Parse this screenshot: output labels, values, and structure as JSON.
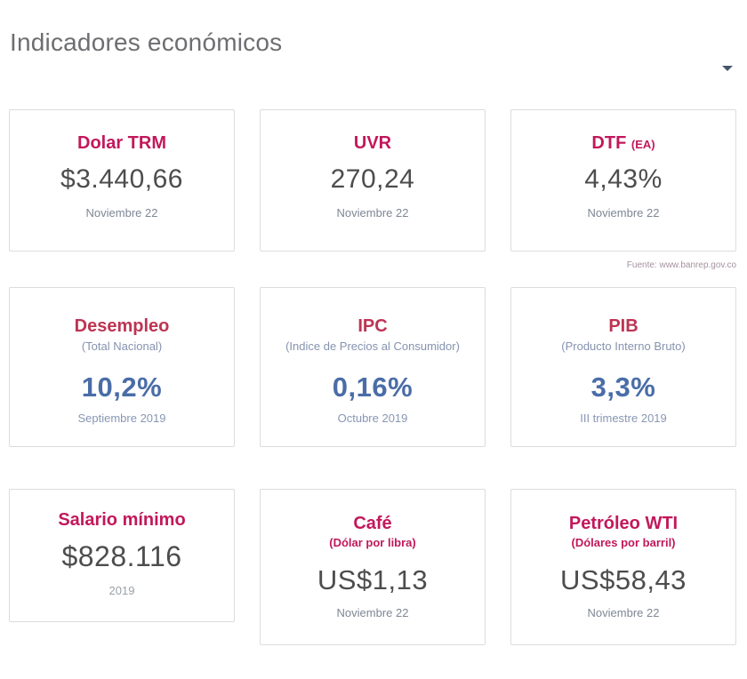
{
  "header": {
    "title": "Indicadores económicos",
    "collapse_icon": "caret-down"
  },
  "source_note": "Fuente: www.banrep.gov.co",
  "colors": {
    "accent_pink": "#c2185b",
    "accent_crimson": "#bd3453",
    "value_dark_gray": "#4d4d4d",
    "value_blue": "#4a6da7",
    "muted_blue": "#8593af",
    "title_gray": "#6d6e71",
    "card_border": "#dcdcdc"
  },
  "cards": {
    "dolar_trm": {
      "title": "Dolar TRM",
      "value": "$3.440,66",
      "date": "Noviembre 22"
    },
    "uvr": {
      "title": "UVR",
      "value": "270,24",
      "date": "Noviembre 22"
    },
    "dtf": {
      "title": "DTF",
      "title_suffix": "(EA)",
      "value": "4,43%",
      "date": "Noviembre 22"
    },
    "desempleo": {
      "title": "Desempleo",
      "subtitle": "(Total Nacional)",
      "value": "10,2%",
      "date": "Septiembre 2019"
    },
    "ipc": {
      "title": "IPC",
      "subtitle": "(Indice de Precios al Consumidor)",
      "value": "0,16%",
      "date": "Octubre 2019"
    },
    "pib": {
      "title": "PIB",
      "subtitle": "(Producto Interno Bruto)",
      "value": "3,3%",
      "date": "III trimestre 2019"
    },
    "salario_minimo": {
      "title": "Salario mínimo",
      "value": "$828.116",
      "date": "2019"
    },
    "cafe": {
      "title": "Café",
      "subtitle": "(Dólar por libra)",
      "value": "US$1,13",
      "date": "Noviembre 22"
    },
    "petroleo_wti": {
      "title": "Petróleo WTI",
      "subtitle": "(Dólares por barril)",
      "value": "US$58,43",
      "date": "Noviembre 22"
    }
  }
}
